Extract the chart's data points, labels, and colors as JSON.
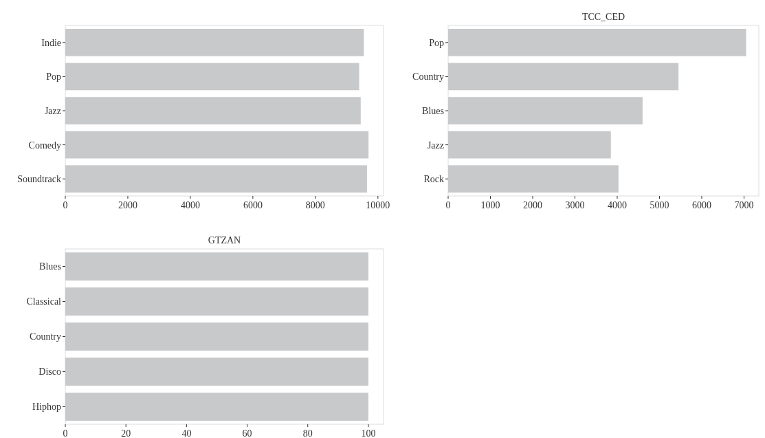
{
  "chart_data": [
    {
      "type": "bar",
      "orientation": "horizontal",
      "categories": [
        "Indie",
        "Pop",
        "Jazz",
        "Comedy",
        "Soundtrack"
      ],
      "values": [
        9550,
        9400,
        9450,
        9700,
        9650
      ],
      "color": "#c8c9cb",
      "xlim": [
        0,
        10180
      ],
      "xticks": [
        0,
        2000,
        4000,
        6000,
        8000,
        10000
      ]
    },
    {
      "type": "bar",
      "orientation": "horizontal",
      "title": "TCC_CED",
      "categories": [
        "Pop",
        "Country",
        "Blues",
        "Jazz",
        "Rock"
      ],
      "values": [
        7050,
        5450,
        4600,
        3850,
        4030
      ],
      "color": "#c8c9cb",
      "xlim": [
        0,
        7350
      ],
      "xticks": [
        0,
        1000,
        2000,
        3000,
        4000,
        5000,
        6000,
        7000
      ]
    },
    {
      "type": "bar",
      "orientation": "horizontal",
      "title": "GTZAN",
      "categories": [
        "Blues",
        "Classical",
        "Country",
        "Disco",
        "Hiphop"
      ],
      "values": [
        100,
        100,
        100,
        100,
        100
      ],
      "color": "#c8c9cb",
      "xlim": [
        0,
        105
      ],
      "xticks": [
        0,
        20,
        40,
        60,
        80,
        100
      ]
    }
  ]
}
